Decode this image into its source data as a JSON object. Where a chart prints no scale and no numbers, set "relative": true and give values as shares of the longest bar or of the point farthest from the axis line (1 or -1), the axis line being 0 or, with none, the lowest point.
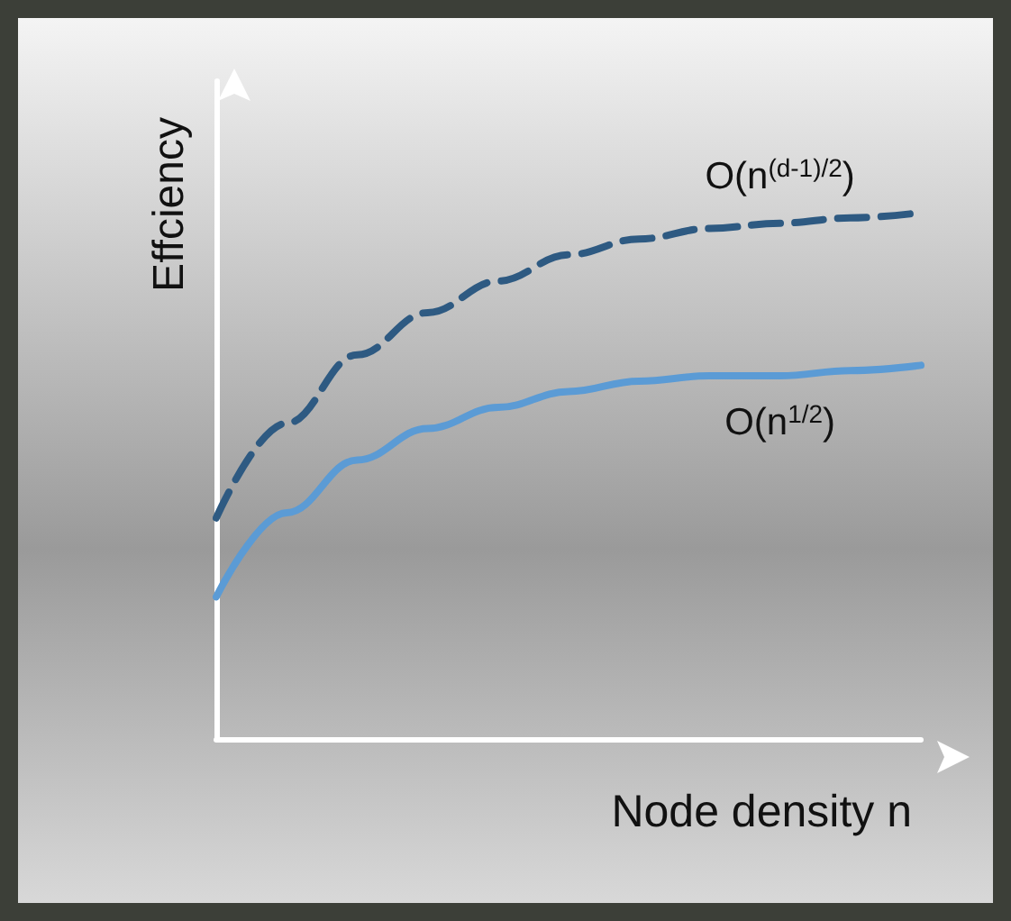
{
  "chart_data": {
    "type": "line",
    "relative": true,
    "xlabel": "Node density n",
    "ylabel": "Effciency",
    "marker": "none",
    "categories": [
      null,
      null,
      null,
      null,
      null,
      null,
      null,
      null,
      null,
      null,
      null
    ],
    "series": [
      {
        "name": "O(n$^{(d-1)/2}$)",
        "color": "#2e5a82",
        "line_style": "dashed",
        "values": [
          0.42,
          0.6,
          0.73,
          0.81,
          0.87,
          0.92,
          0.95,
          0.97,
          0.98,
          0.99,
          1.0
        ]
      },
      {
        "name": "O(n$^{1/2}$)",
        "color": "#5b9bd5",
        "line_style": "solid",
        "values": [
          0.27,
          0.43,
          0.53,
          0.59,
          0.63,
          0.66,
          0.68,
          0.69,
          0.69,
          0.7,
          0.71
        ]
      }
    ]
  }
}
